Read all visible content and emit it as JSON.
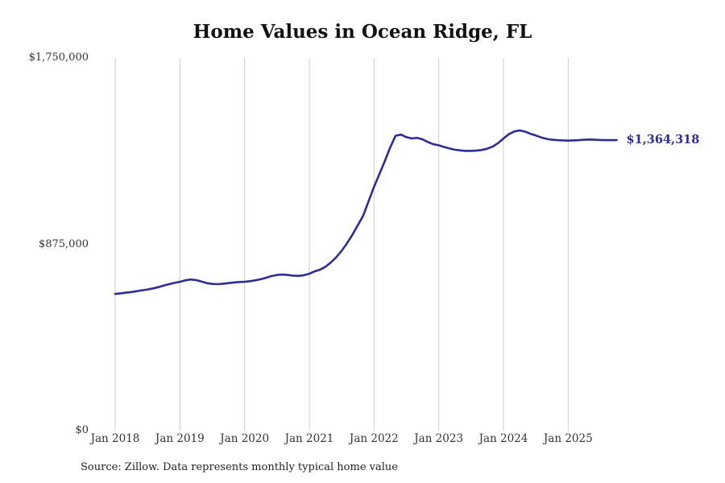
{
  "title": "Home Values in Ocean Ridge, FL",
  "source_note": "Source: Zillow. Data represents monthly typical home value",
  "chart_data": {
    "type": "line",
    "title": "Home Values in Ocean Ridge, FL",
    "xlabel": "",
    "ylabel": "",
    "ylim": [
      0,
      1750000
    ],
    "y_tick_labels": [
      "$0",
      "$875,000",
      "$1,750,000"
    ],
    "x_tick_labels": [
      "Jan 2018",
      "Jan 2019",
      "Jan 2020",
      "Jan 2021",
      "Jan 2022",
      "Jan 2023",
      "Jan 2024",
      "Jan 2025"
    ],
    "grid": "vertical-at-january-ticks",
    "legend": "none",
    "line_color": "#2e2c96",
    "grid_color": "#cccccc",
    "end_label": "$1,364,318",
    "final_value": 1364318,
    "frequency": "monthly",
    "x": [
      "2018-01",
      "2018-02",
      "2018-03",
      "2018-04",
      "2018-05",
      "2018-06",
      "2018-07",
      "2018-08",
      "2018-09",
      "2018-10",
      "2018-11",
      "2018-12",
      "2019-01",
      "2019-02",
      "2019-03",
      "2019-04",
      "2019-05",
      "2019-06",
      "2019-07",
      "2019-08",
      "2019-09",
      "2019-10",
      "2019-11",
      "2019-12",
      "2020-01",
      "2020-02",
      "2020-03",
      "2020-04",
      "2020-05",
      "2020-06",
      "2020-07",
      "2020-08",
      "2020-09",
      "2020-10",
      "2020-11",
      "2020-12",
      "2021-01",
      "2021-02",
      "2021-03",
      "2021-04",
      "2021-05",
      "2021-06",
      "2021-07",
      "2021-08",
      "2021-09",
      "2021-10",
      "2021-11",
      "2021-12",
      "2022-01",
      "2022-02",
      "2022-03",
      "2022-04",
      "2022-05",
      "2022-06",
      "2022-07",
      "2022-08",
      "2022-09",
      "2022-10",
      "2022-11",
      "2022-12",
      "2023-01",
      "2023-02",
      "2023-03",
      "2023-04",
      "2023-05",
      "2023-06",
      "2023-07",
      "2023-08",
      "2023-09",
      "2023-10",
      "2023-11",
      "2023-12",
      "2024-01",
      "2024-02",
      "2024-03",
      "2024-04",
      "2024-05",
      "2024-06",
      "2024-07",
      "2024-08",
      "2024-09",
      "2024-10",
      "2024-11",
      "2024-12",
      "2025-01",
      "2025-02",
      "2025-03",
      "2025-04",
      "2025-05",
      "2025-06",
      "2025-07",
      "2025-08",
      "2025-09",
      "2025-10"
    ],
    "values": [
      642000,
      645000,
      648000,
      651000,
      655000,
      659000,
      663000,
      668000,
      674000,
      681000,
      688000,
      694000,
      699000,
      706000,
      710000,
      707000,
      700000,
      693000,
      689000,
      688000,
      690000,
      693000,
      696000,
      698000,
      699000,
      702000,
      706000,
      711000,
      718000,
      726000,
      731000,
      733000,
      731000,
      728000,
      727000,
      730000,
      737000,
      748000,
      756000,
      770000,
      790000,
      815000,
      845000,
      880000,
      920000,
      965000,
      1010000,
      1078000,
      1145000,
      1205000,
      1266000,
      1330000,
      1385000,
      1390000,
      1378000,
      1372000,
      1375000,
      1368000,
      1355000,
      1345000,
      1340000,
      1332000,
      1325000,
      1319000,
      1316000,
      1314000,
      1314000,
      1315000,
      1318000,
      1324000,
      1334000,
      1350000,
      1372000,
      1392000,
      1405000,
      1410000,
      1404000,
      1394000,
      1386000,
      1377000,
      1370000,
      1366000,
      1364000,
      1363000,
      1362000,
      1363000,
      1364000,
      1366000,
      1367000,
      1366000,
      1365000,
      1364000,
      1364000,
      1364318
    ]
  }
}
